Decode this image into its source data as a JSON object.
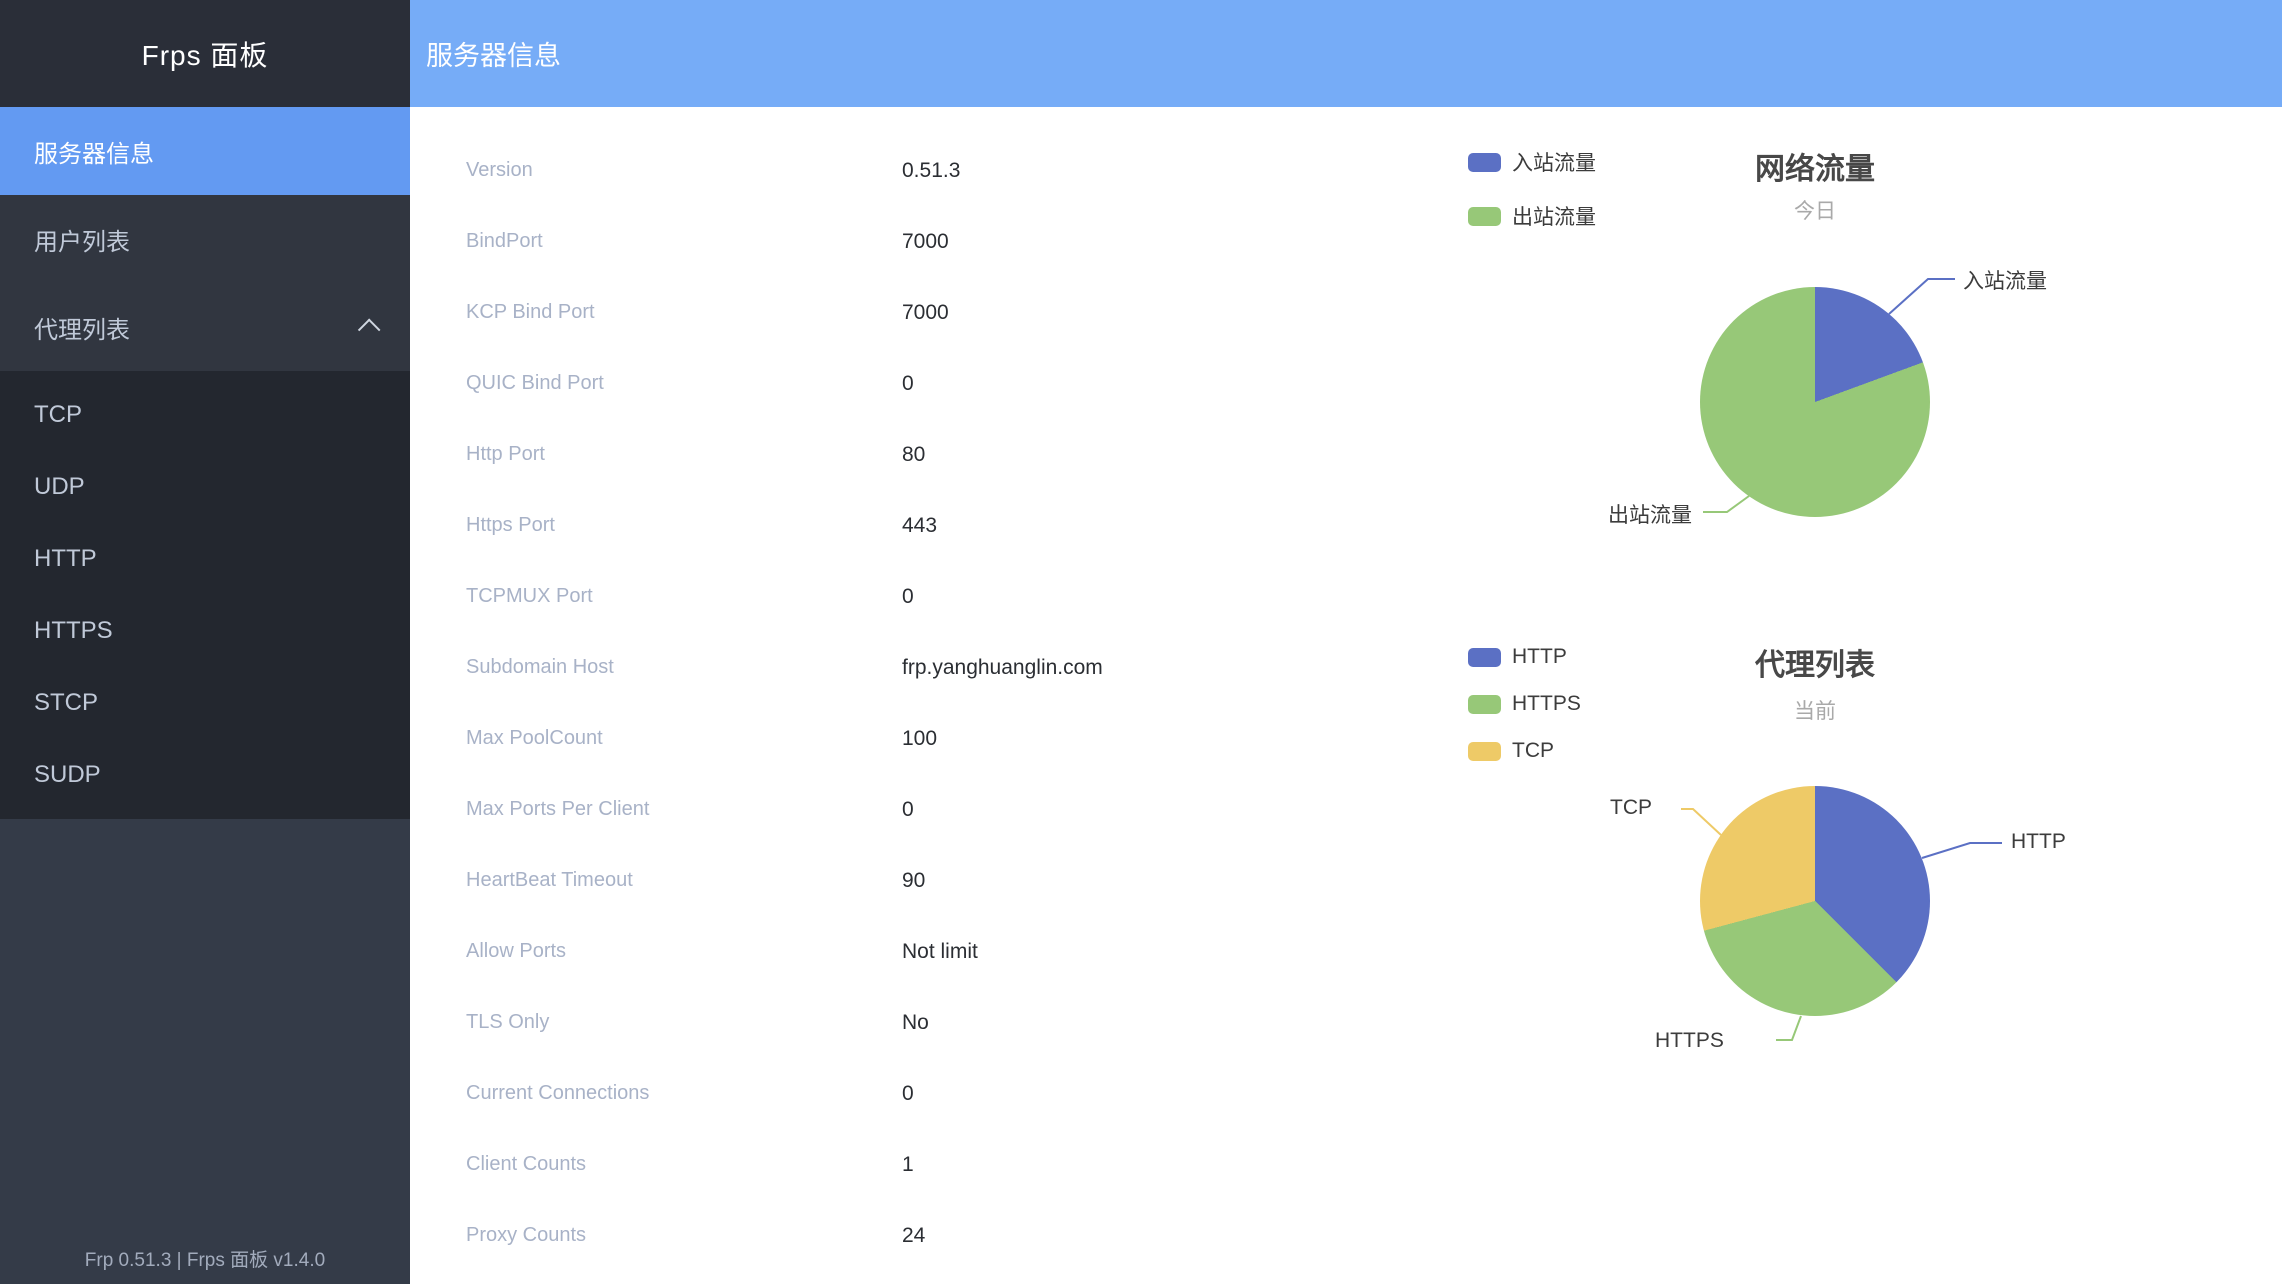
{
  "sidebar": {
    "title": "Frps 面板",
    "menu": [
      {
        "label": "服务器信息",
        "active": true,
        "has_children": false
      },
      {
        "label": "用户列表",
        "active": false,
        "has_children": false
      },
      {
        "label": "代理列表",
        "active": false,
        "has_children": true,
        "expanded": true,
        "children": [
          "TCP",
          "UDP",
          "HTTP",
          "HTTPS",
          "STCP",
          "SUDP"
        ]
      }
    ],
    "footer": "Frp 0.51.3 | Frps 面板 v1.4.0"
  },
  "header": {
    "title": "服务器信息"
  },
  "server_info": {
    "rows": [
      {
        "label": "Version",
        "value": "0.51.3"
      },
      {
        "label": "BindPort",
        "value": "7000"
      },
      {
        "label": "KCP Bind Port",
        "value": "7000"
      },
      {
        "label": "QUIC Bind Port",
        "value": "0"
      },
      {
        "label": "Http Port",
        "value": "80"
      },
      {
        "label": "Https Port",
        "value": "443"
      },
      {
        "label": "TCPMUX Port",
        "value": "0"
      },
      {
        "label": "Subdomain Host",
        "value": "frp.yanghuanglin.com"
      },
      {
        "label": "Max PoolCount",
        "value": "100"
      },
      {
        "label": "Max Ports Per Client",
        "value": "0"
      },
      {
        "label": "HeartBeat Timeout",
        "value": "90"
      },
      {
        "label": "Allow Ports",
        "value": "Not limit"
      },
      {
        "label": "TLS Only",
        "value": "No"
      },
      {
        "label": "Current Connections",
        "value": "0"
      },
      {
        "label": "Client Counts",
        "value": "1"
      },
      {
        "label": "Proxy Counts",
        "value": "24"
      }
    ]
  },
  "chart_data": [
    {
      "type": "pie",
      "title": "网络流量",
      "subtitle": "今日",
      "legend_position": "top-left",
      "labels": "callout lines with series names, no numeric labels shown",
      "series": [
        {
          "name": "入站流量",
          "value": 19.4,
          "unit": "percent, estimated from slice angle",
          "color": "#5b70c4"
        },
        {
          "name": "出站流量",
          "value": 80.6,
          "unit": "percent, estimated from slice angle",
          "color": "#97c878"
        }
      ]
    },
    {
      "type": "pie",
      "title": "代理列表",
      "subtitle": "当前",
      "legend_position": "top-left",
      "labels": "callout lines with series names, no numeric labels shown",
      "series": [
        {
          "name": "HTTP",
          "value": 9,
          "color": "#5b70c4"
        },
        {
          "name": "HTTPS",
          "value": 8,
          "color": "#97c878"
        },
        {
          "name": "TCP",
          "value": 7,
          "color": "#eeca67"
        }
      ]
    }
  ],
  "colors": {
    "topbar_bg": "#76acf7",
    "sidebar_bg": "#343b48",
    "sidebar_header_bg": "#2a2e38",
    "menu_bg": "#313640",
    "submenu_bg": "#23272f",
    "active_item_bg": "#639af2",
    "menu_text": "#c0c9d8",
    "info_label": "#a8b2c7",
    "info_value": "#2b2e33",
    "pie_blue": "#5b70c4",
    "pie_green": "#97c878",
    "pie_yellow": "#eeca67"
  }
}
